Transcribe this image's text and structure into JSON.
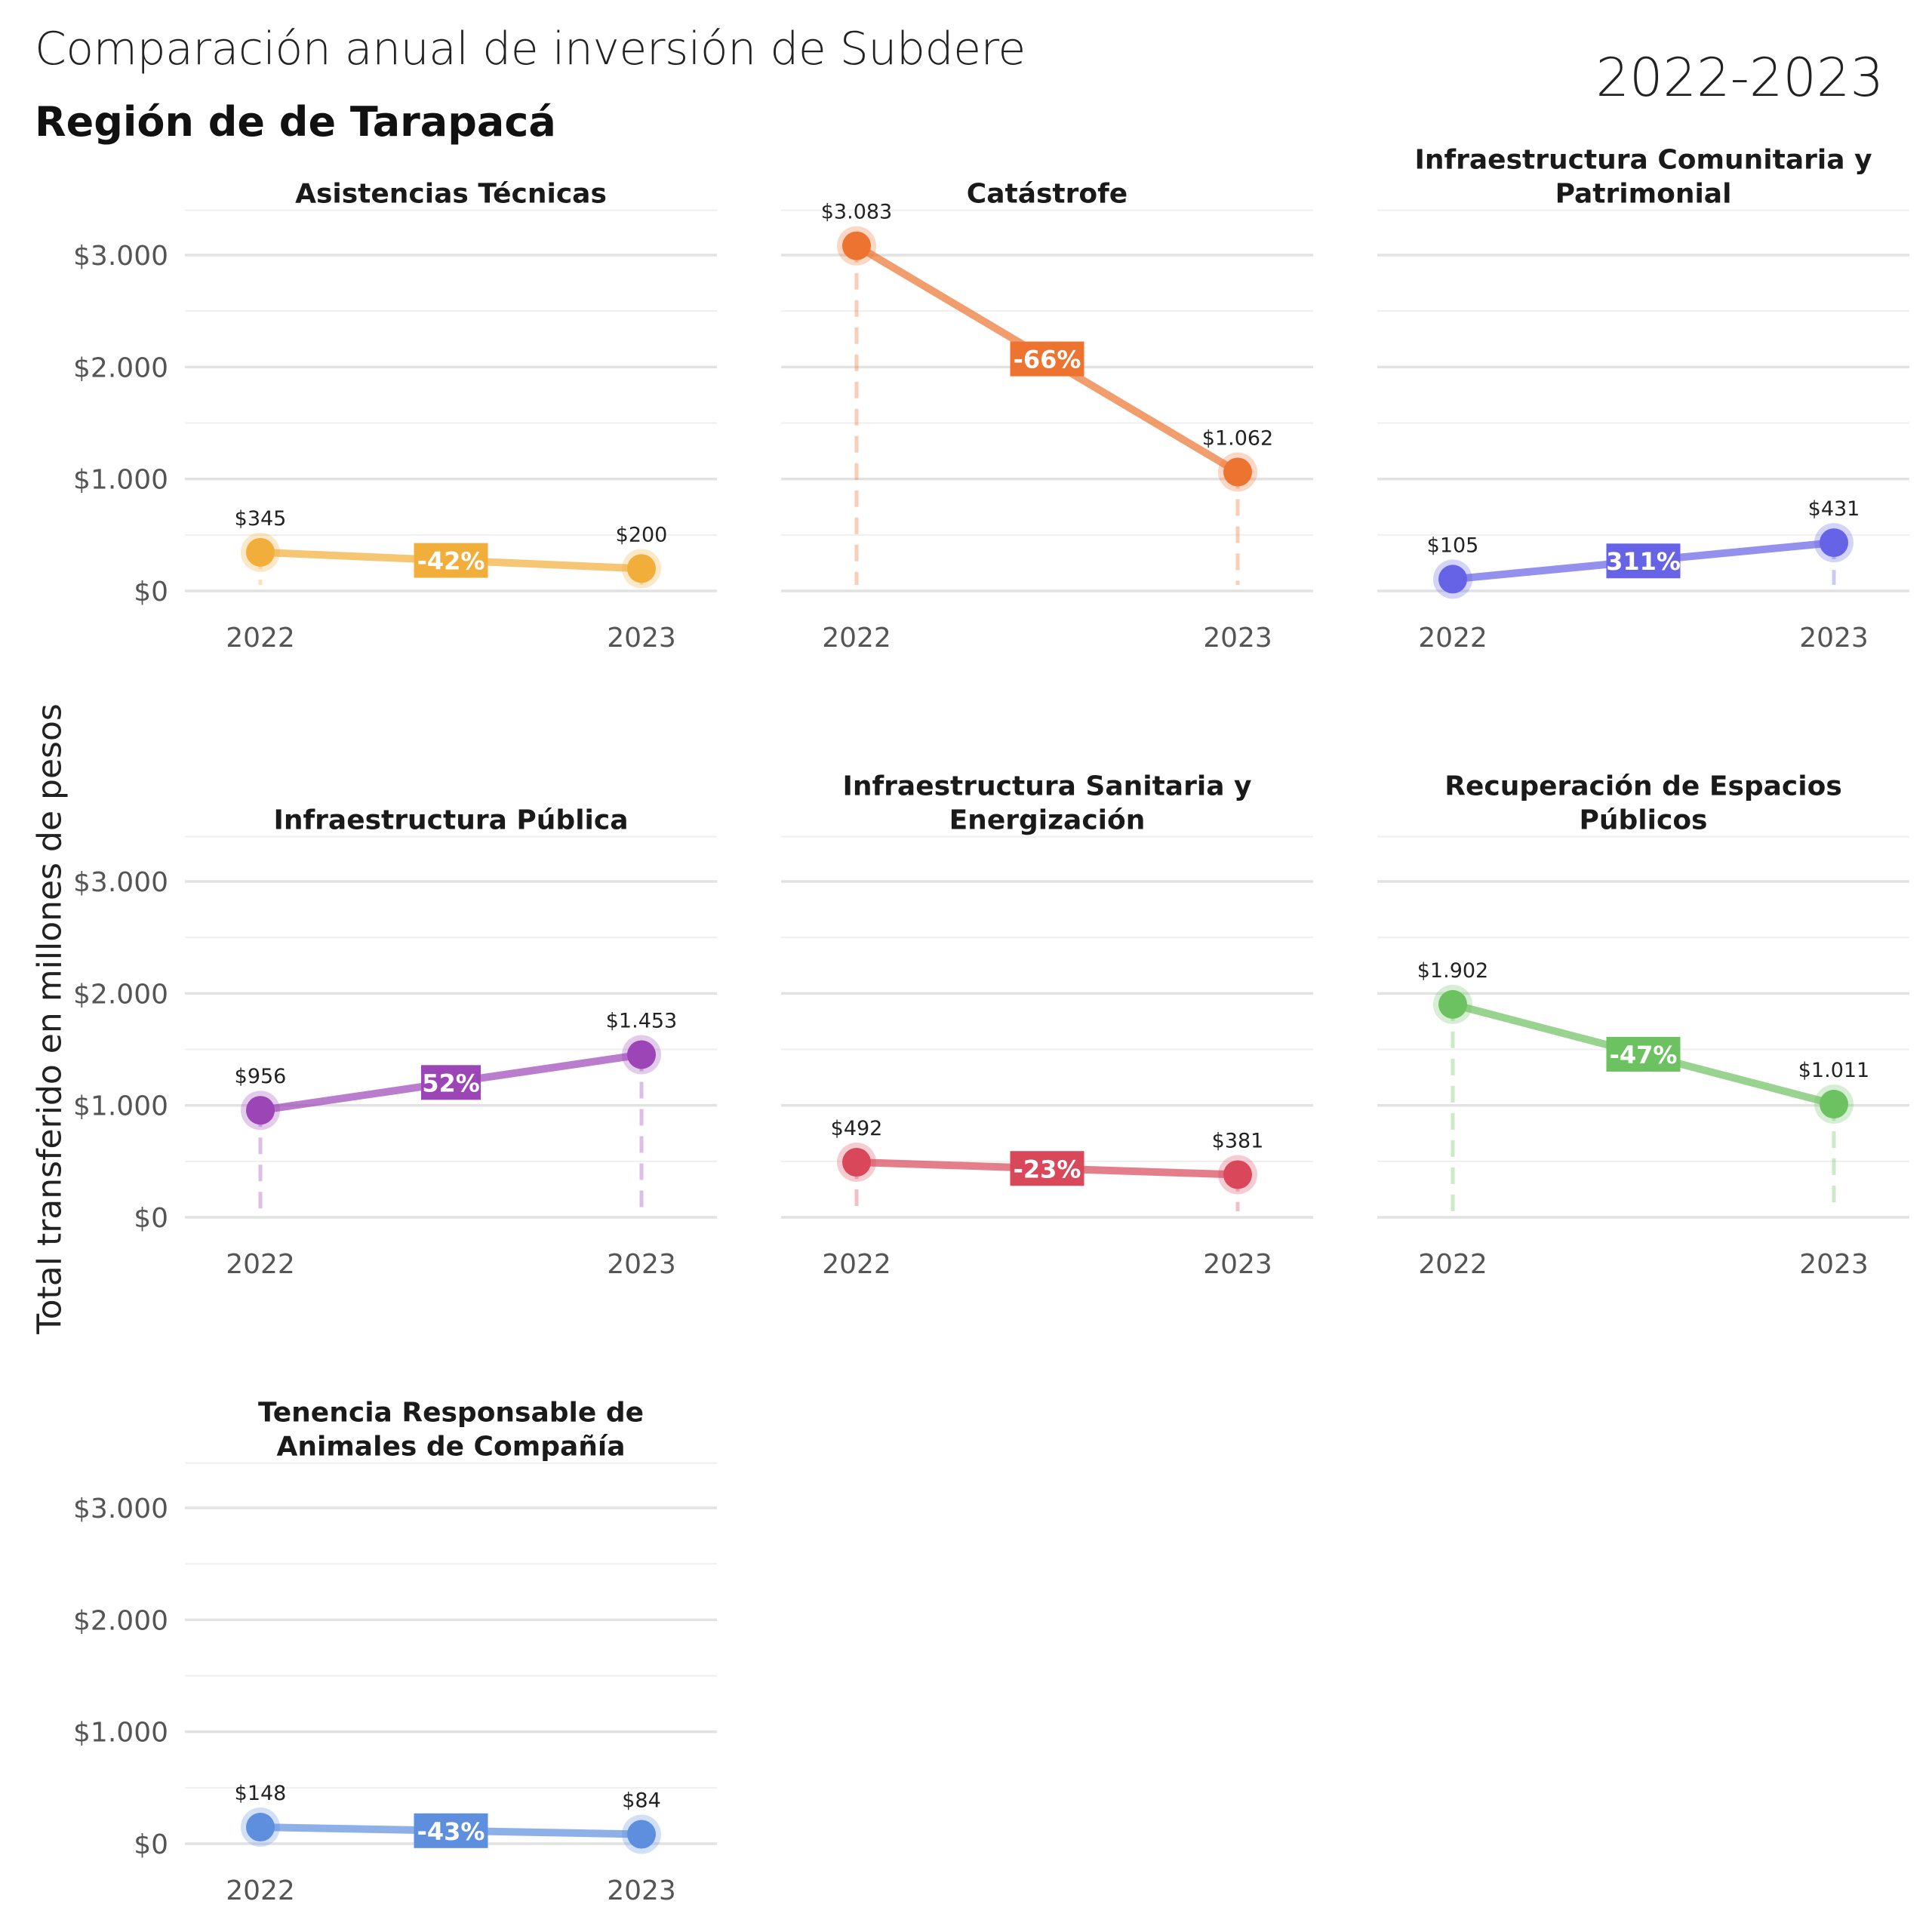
{
  "header": {
    "title": "Comparación anual de inversión de Subdere",
    "subtitle": "Región de de Tarapacá",
    "period": "2022-2023"
  },
  "y_axis_label": "Total transferido en millones de pesos",
  "chart_data": {
    "type": "line",
    "x": [
      "2022",
      "2023"
    ],
    "ylim": [
      0,
      3400
    ],
    "y_ticks": [
      0,
      1000,
      2000,
      3000
    ],
    "y_tick_labels": [
      "$0",
      "$1.000",
      "$2.000",
      "$3.000"
    ],
    "grid": true,
    "panels": [
      {
        "title": [
          "Asistencias Técnicas"
        ],
        "color": "#F2AE3A",
        "values": [
          345,
          200
        ],
        "value_labels": [
          "$345",
          "$200"
        ],
        "change": "-42%"
      },
      {
        "title": [
          "Catástrofe"
        ],
        "color": "#EC7430",
        "values": [
          3083,
          1062
        ],
        "value_labels": [
          "$3.083",
          "$1.062"
        ],
        "change": "-66%"
      },
      {
        "title": [
          "Infraestructura Comunitaria y",
          "Patrimonial"
        ],
        "color": "#6663E7",
        "values": [
          105,
          431
        ],
        "value_labels": [
          "$105",
          "$431"
        ],
        "change": "311%"
      },
      {
        "title": [
          "Infraestructura Pública"
        ],
        "color": "#9C45B7",
        "values": [
          956,
          1453
        ],
        "value_labels": [
          "$956",
          "$1.453"
        ],
        "change": "52%"
      },
      {
        "title": [
          "Infraestructura Sanitaria y",
          "Energización"
        ],
        "color": "#D9475A",
        "values": [
          492,
          381
        ],
        "value_labels": [
          "$492",
          "$381"
        ],
        "change": "-23%"
      },
      {
        "title": [
          "Recuperación de Espacios",
          "Públicos"
        ],
        "color": "#6CC160",
        "values": [
          1902,
          1011
        ],
        "value_labels": [
          "$1.902",
          "$1.011"
        ],
        "change": "-47%"
      },
      {
        "title": [
          "Tenencia Responsable de",
          "Animales de Compañía"
        ],
        "color": "#5E8FDE",
        "values": [
          148,
          84
        ],
        "value_labels": [
          "$148",
          "$84"
        ],
        "change": "-43%"
      }
    ]
  }
}
